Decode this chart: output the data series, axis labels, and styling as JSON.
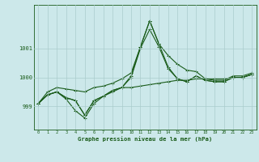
{
  "title": "Graphe pression niveau de la mer (hPa)",
  "background_color": "#cce8ea",
  "grid_color": "#aacccc",
  "line_color": "#1a5c1a",
  "x_labels": [
    "0",
    "1",
    "2",
    "3",
    "4",
    "5",
    "6",
    "7",
    "8",
    "9",
    "10",
    "11",
    "12",
    "13",
    "14",
    "15",
    "16",
    "17",
    "18",
    "19",
    "20",
    "21",
    "22",
    "23"
  ],
  "y_ticks": [
    999,
    1000,
    1001
  ],
  "ylim": [
    998.2,
    1002.5
  ],
  "series": [
    [
      999.1,
      999.4,
      999.5,
      999.25,
      998.85,
      998.6,
      999.1,
      999.35,
      999.5,
      999.65,
      999.65,
      999.7,
      999.75,
      999.8,
      999.85,
      999.9,
      999.9,
      999.95,
      999.95,
      999.95,
      999.95,
      1000.0,
      1000.0,
      1000.1
    ],
    [
      999.1,
      999.4,
      999.5,
      999.3,
      999.2,
      998.7,
      999.2,
      999.35,
      999.55,
      999.65,
      1000.0,
      1001.0,
      1001.65,
      1001.05,
      1000.3,
      999.95,
      999.85,
      1000.05,
      999.9,
      999.85,
      999.85,
      1000.0,
      1000.0,
      1000.1
    ],
    [
      999.1,
      999.4,
      999.5,
      999.3,
      999.2,
      998.7,
      999.2,
      999.35,
      999.55,
      999.65,
      1000.05,
      1001.05,
      1001.95,
      1001.15,
      1000.35,
      999.95,
      999.85,
      1000.05,
      999.9,
      999.85,
      999.85,
      1000.0,
      1000.0,
      1000.1
    ],
    [
      999.1,
      999.5,
      999.65,
      999.6,
      999.55,
      999.5,
      999.65,
      999.7,
      999.8,
      999.95,
      1000.15,
      1001.05,
      1001.95,
      1001.15,
      1000.75,
      1000.45,
      1000.25,
      1000.2,
      999.95,
      999.9,
      999.9,
      1000.05,
      1000.05,
      1000.15
    ]
  ]
}
